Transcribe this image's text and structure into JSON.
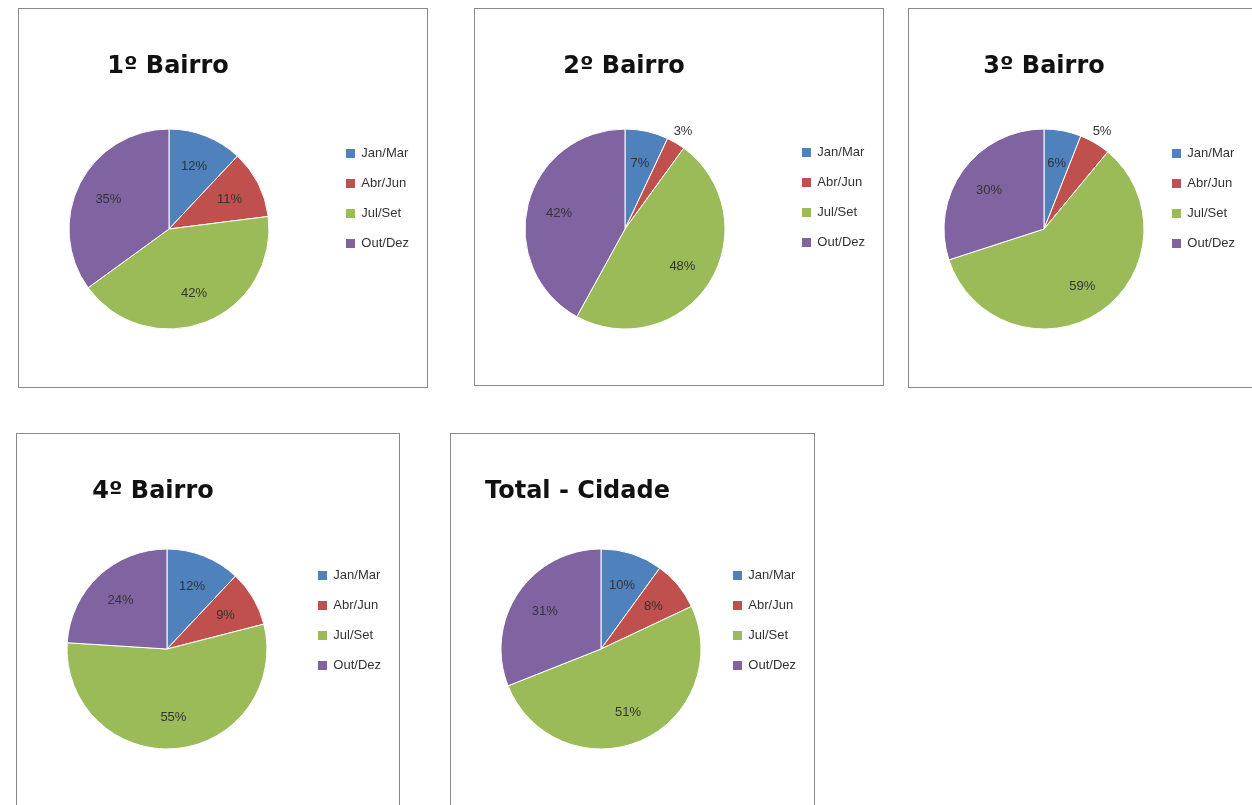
{
  "chart_data": [
    {
      "type": "pie",
      "title": "1º Bairro",
      "categories": [
        "Jan/Mar",
        "Abr/Jun",
        "Jul/Set",
        "Out/Dez"
      ],
      "values": [
        12,
        11,
        42,
        35
      ],
      "value_labels": [
        "12%",
        "11%",
        "42%",
        "35%"
      ],
      "colors": [
        "#4f81bd",
        "#c0504d",
        "#9bbb59",
        "#8064a2"
      ],
      "legend": "right"
    },
    {
      "type": "pie",
      "title": "2º Bairro",
      "categories": [
        "Jan/Mar",
        "Abr/Jun",
        "Jul/Set",
        "Out/Dez"
      ],
      "values": [
        7,
        3,
        48,
        42
      ],
      "value_labels": [
        "7%",
        "3%",
        "48%",
        "42%"
      ],
      "colors": [
        "#4f81bd",
        "#c0504d",
        "#9bbb59",
        "#8064a2"
      ],
      "legend": "right"
    },
    {
      "type": "pie",
      "title": "3º Bairro",
      "categories": [
        "Jan/Mar",
        "Abr/Jun",
        "Jul/Set",
        "Out/Dez"
      ],
      "values": [
        6,
        5,
        59,
        30
      ],
      "value_labels": [
        "6%",
        "5%",
        "59%",
        "30%"
      ],
      "colors": [
        "#4f81bd",
        "#c0504d",
        "#9bbb59",
        "#8064a2"
      ],
      "legend": "right"
    },
    {
      "type": "pie",
      "title": "4º Bairro",
      "categories": [
        "Jan/Mar",
        "Abr/Jun",
        "Jul/Set",
        "Out/Dez"
      ],
      "values": [
        12,
        9,
        55,
        24
      ],
      "value_labels": [
        "12%",
        "9%",
        "55%",
        "24%"
      ],
      "colors": [
        "#4f81bd",
        "#c0504d",
        "#9bbb59",
        "#8064a2"
      ],
      "legend": "right"
    },
    {
      "type": "pie",
      "title": "Total - Cidade",
      "categories": [
        "Jan/Mar",
        "Abr/Jun",
        "Jul/Set",
        "Out/Dez"
      ],
      "values": [
        10,
        8,
        51,
        31
      ],
      "value_labels": [
        "10%",
        "8%",
        "51%",
        "31%"
      ],
      "colors": [
        "#4f81bd",
        "#c0504d",
        "#9bbb59",
        "#8064a2"
      ],
      "legend": "right"
    }
  ]
}
